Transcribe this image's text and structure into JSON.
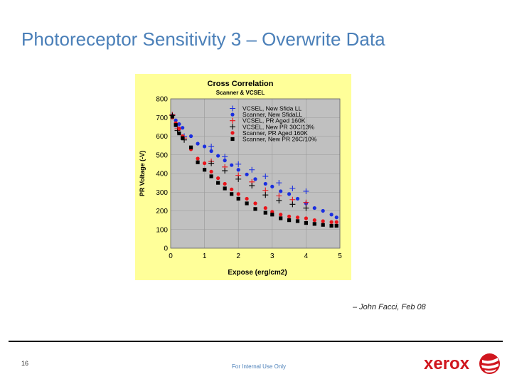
{
  "slide": {
    "title": "Photoreceptor Sensitivity 3 – Overwrite Data",
    "credit": "– John Facci, Feb 08",
    "page_number": "16",
    "footer_note": "For Internal Use Only",
    "logo_text": "xerox"
  },
  "colors": {
    "title": "#4a7fb8",
    "chart_background": "#ffff99",
    "plot_background": "#c0c0c0",
    "blue": "#1a2ee0",
    "red": "#e8141a",
    "black": "#000000",
    "logo_red": "#d0161e"
  },
  "chart_data": {
    "type": "scatter",
    "title": "Cross Correlation",
    "subtitle": "Scanner & VCSEL",
    "xlabel": "Expose (erg/cm2)",
    "ylabel": "PR Voltage (-V)",
    "xlim": [
      0,
      5
    ],
    "ylim": [
      0,
      800
    ],
    "x_ticks": [
      "0",
      "1",
      "2",
      "3",
      "4",
      "5"
    ],
    "y_ticks": [
      "0",
      "100",
      "200",
      "300",
      "400",
      "500",
      "600",
      "700",
      "800"
    ],
    "grid": true,
    "legend_position": "top-right",
    "series": [
      {
        "name": "VCSEL, New Sfida LL",
        "color": "blue",
        "marker": "plus",
        "points": [
          [
            0.05,
            715
          ],
          [
            0.2,
            650
          ],
          [
            0.4,
            600
          ],
          [
            1.2,
            545
          ],
          [
            1.6,
            490
          ],
          [
            2.0,
            450
          ],
          [
            2.4,
            420
          ],
          [
            2.8,
            385
          ],
          [
            3.2,
            350
          ],
          [
            3.6,
            320
          ],
          [
            4.0,
            305
          ]
        ]
      },
      {
        "name": "Scanner, New SfidaLL",
        "color": "blue",
        "marker": "circle",
        "points": [
          [
            0.05,
            710
          ],
          [
            0.15,
            685
          ],
          [
            0.25,
            665
          ],
          [
            0.35,
            645
          ],
          [
            0.6,
            600
          ],
          [
            0.8,
            560
          ],
          [
            1.0,
            545
          ],
          [
            1.2,
            520
          ],
          [
            1.4,
            495
          ],
          [
            1.6,
            470
          ],
          [
            1.8,
            445
          ],
          [
            2.0,
            420
          ],
          [
            2.25,
            395
          ],
          [
            2.5,
            370
          ],
          [
            2.8,
            345
          ],
          [
            3.0,
            330
          ],
          [
            3.25,
            305
          ],
          [
            3.5,
            290
          ],
          [
            3.75,
            265
          ],
          [
            4.0,
            240
          ],
          [
            4.25,
            215
          ],
          [
            4.5,
            200
          ],
          [
            4.75,
            180
          ],
          [
            4.9,
            165
          ]
        ]
      },
      {
        "name": "VCSEL, PR Aged 160K",
        "color": "red",
        "marker": "plus",
        "points": [
          [
            0.05,
            715
          ],
          [
            0.2,
            640
          ],
          [
            0.4,
            590
          ],
          [
            1.2,
            465
          ],
          [
            1.6,
            435
          ],
          [
            2.0,
            390
          ],
          [
            2.4,
            355
          ],
          [
            2.8,
            310
          ],
          [
            3.2,
            280
          ],
          [
            3.6,
            260
          ],
          [
            4.0,
            245
          ]
        ]
      },
      {
        "name": "VCSEL, New PR 30C/13%",
        "color": "black",
        "marker": "plus",
        "points": [
          [
            0.05,
            710
          ],
          [
            0.2,
            630
          ],
          [
            0.4,
            580
          ],
          [
            1.2,
            455
          ],
          [
            1.6,
            415
          ],
          [
            2.0,
            370
          ],
          [
            2.4,
            335
          ],
          [
            2.8,
            285
          ],
          [
            3.2,
            255
          ],
          [
            3.6,
            235
          ],
          [
            4.0,
            215
          ]
        ]
      },
      {
        "name": "Scanner, PR Aged 160K",
        "color": "red",
        "marker": "circle",
        "points": [
          [
            0.05,
            700
          ],
          [
            0.15,
            670
          ],
          [
            0.25,
            640
          ],
          [
            0.35,
            600
          ],
          [
            0.6,
            530
          ],
          [
            0.8,
            480
          ],
          [
            1.0,
            455
          ],
          [
            1.2,
            410
          ],
          [
            1.4,
            375
          ],
          [
            1.6,
            345
          ],
          [
            1.8,
            315
          ],
          [
            2.0,
            290
          ],
          [
            2.25,
            265
          ],
          [
            2.5,
            240
          ],
          [
            2.8,
            215
          ],
          [
            3.0,
            195
          ],
          [
            3.25,
            180
          ],
          [
            3.5,
            170
          ],
          [
            3.75,
            165
          ],
          [
            4.0,
            160
          ],
          [
            4.25,
            150
          ],
          [
            4.5,
            145
          ],
          [
            4.75,
            140
          ],
          [
            4.9,
            140
          ]
        ]
      },
      {
        "name": "Scanner, New PR 26C/10%",
        "color": "black",
        "marker": "square",
        "points": [
          [
            0.05,
            705
          ],
          [
            0.15,
            660
          ],
          [
            0.25,
            615
          ],
          [
            0.35,
            590
          ],
          [
            0.6,
            540
          ],
          [
            0.8,
            460
          ],
          [
            1.0,
            420
          ],
          [
            1.2,
            385
          ],
          [
            1.4,
            350
          ],
          [
            1.6,
            320
          ],
          [
            1.8,
            290
          ],
          [
            2.0,
            265
          ],
          [
            2.25,
            240
          ],
          [
            2.5,
            210
          ],
          [
            2.8,
            190
          ],
          [
            3.0,
            180
          ],
          [
            3.25,
            160
          ],
          [
            3.5,
            150
          ],
          [
            3.75,
            145
          ],
          [
            4.0,
            135
          ],
          [
            4.25,
            130
          ],
          [
            4.5,
            125
          ],
          [
            4.75,
            120
          ],
          [
            4.9,
            120
          ]
        ]
      }
    ]
  }
}
